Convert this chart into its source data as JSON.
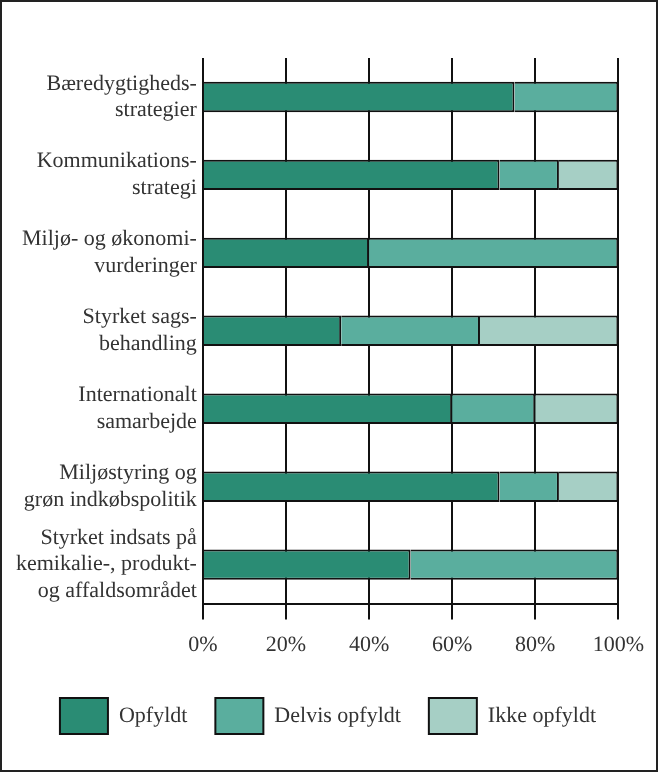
{
  "chart_data": {
    "type": "bar",
    "orientation": "horizontal",
    "stacked": true,
    "categories": [
      "Bæredygtigheds-\nstrategier",
      "Kommunikations-\nstrategi",
      "Miljø- og økonomi-\nvurderinger",
      "Styrket sags-\nbehandling",
      "Internationalt\nsamarbejde",
      "Miljøstyring og\ngrøn indkøbspolitik",
      "Styrket indsats på\nkemikalie-, produkt-\nog affaldsområdet"
    ],
    "series": [
      {
        "name": "Opfyldt",
        "color": "#2a8c74",
        "values": [
          75,
          71.4,
          40,
          33.3,
          60,
          71.4,
          50
        ]
      },
      {
        "name": "Delvis opfyldt",
        "color": "#5aae9e",
        "values": [
          25,
          14.3,
          60,
          33.4,
          20,
          14.3,
          50
        ]
      },
      {
        "name": "Ikke opfyldt",
        "color": "#a6cfc5",
        "values": [
          0,
          14.3,
          0,
          33.3,
          20,
          14.3,
          0
        ]
      }
    ],
    "xlim": [
      0,
      100
    ],
    "xticks": [
      {
        "value": 0,
        "label": "0%"
      },
      {
        "value": 20,
        "label": "20%"
      },
      {
        "value": 40,
        "label": "40%"
      },
      {
        "value": 60,
        "label": "60%"
      },
      {
        "value": 80,
        "label": "80%"
      },
      {
        "value": 100,
        "label": "100%"
      }
    ],
    "grid": "x",
    "legend": "bottom"
  }
}
